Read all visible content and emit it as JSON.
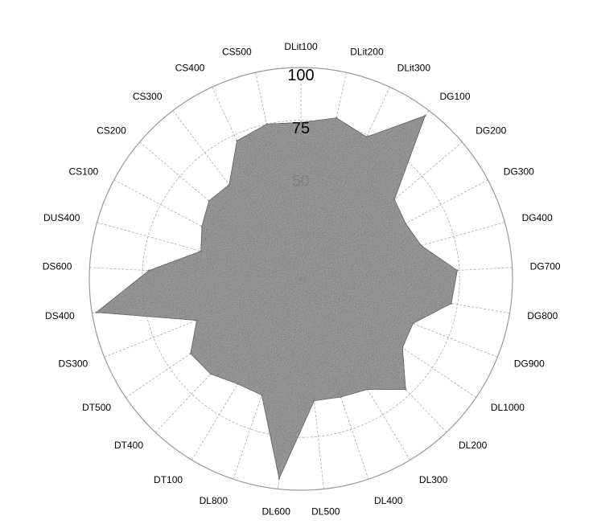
{
  "chart_data": {
    "type": "radar",
    "categories": [
      "DLit100",
      "DLit200",
      "DLit300",
      "DG100",
      "DG200",
      "DG300",
      "DG400",
      "DG700",
      "DG800",
      "DG900",
      "DL1000",
      "DL200",
      "DL300",
      "DL400",
      "DL500",
      "DL600",
      "DL800",
      "DT100",
      "DT400",
      "DT500",
      "DS300",
      "DS400",
      "DS600",
      "DUS400",
      "CS100",
      "CS200",
      "CS300",
      "CS400",
      "CS500"
    ],
    "values": [
      74,
      78,
      74,
      97,
      58,
      56,
      59,
      74,
      72,
      57,
      58,
      72,
      61,
      59,
      58,
      95,
      58,
      58,
      62,
      63,
      53,
      98,
      72,
      49,
      53,
      57,
      56,
      72,
      75
    ],
    "rlim": [
      0,
      100
    ],
    "rticks": [
      "25",
      "50",
      "75",
      "100"
    ],
    "grid": true,
    "colors": {
      "fill": "#9a9a9a",
      "edge": "#7a7a7a",
      "grid": "#aaaaaa",
      "outer_circle": "#999999"
    }
  }
}
